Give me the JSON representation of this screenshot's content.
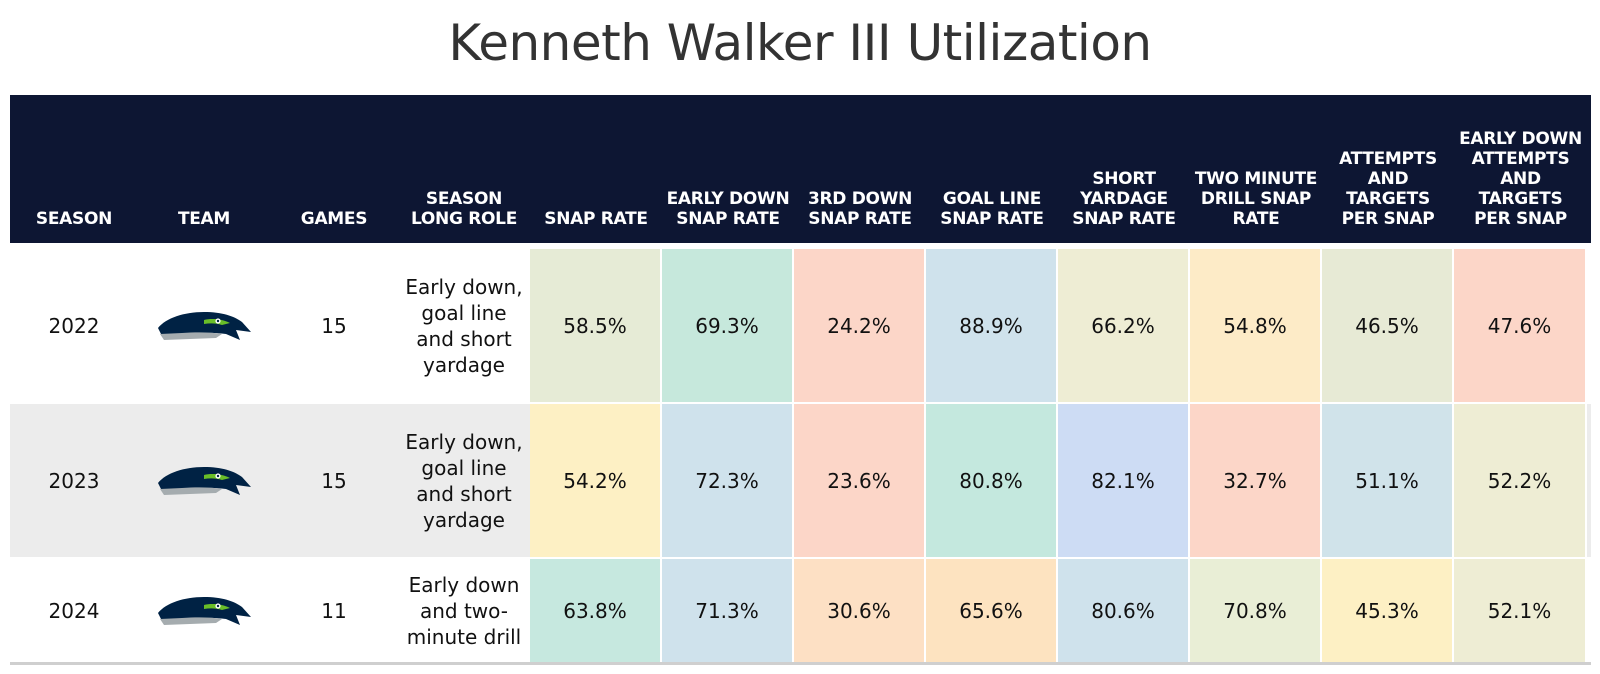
{
  "title": "Kenneth Walker III Utilization",
  "headers": [
    "SEASON",
    "TEAM",
    "GAMES",
    "SEASON LONG ROLE",
    "SNAP RATE",
    "EARLY DOWN SNAP RATE",
    "3RD DOWN SNAP RATE",
    "GOAL LINE SNAP RATE",
    "SHORT YARDAGE SNAP RATE",
    "TWO MINUTE DRILL SNAP RATE",
    "ATTEMPTS AND TARGETS PER SNAP",
    "EARLY DOWN ATTEMPTS AND TARGETS PER SNAP"
  ],
  "rows": [
    {
      "season": "2022",
      "team_logo": "seahawks-logo",
      "games": "15",
      "role": "Early down, goal line and short yardage",
      "metrics": [
        "58.5%",
        "69.3%",
        "24.2%",
        "88.9%",
        "66.2%",
        "54.8%",
        "46.5%",
        "47.6%"
      ],
      "colors": [
        "#e6ebd6",
        "#c6e8dc",
        "#fcd6c8",
        "#cfe2ec",
        "#eeedd4",
        "#fdebc7",
        "#e7ead5",
        "#fcd6c8"
      ]
    },
    {
      "season": "2023",
      "team_logo": "seahawks-logo",
      "games": "15",
      "role": "Early down, goal line and short yardage",
      "metrics": [
        "54.2%",
        "72.3%",
        "23.6%",
        "80.8%",
        "82.1%",
        "32.7%",
        "51.1%",
        "52.2%"
      ],
      "colors": [
        "#fdf0c4",
        "#cfe2ec",
        "#fcd6c8",
        "#c4e8de",
        "#cddcf4",
        "#fcd6c8",
        "#d0e3ea",
        "#eeedd4"
      ]
    },
    {
      "season": "2024",
      "team_logo": "seahawks-logo",
      "games": "11",
      "role": "Early down and two-minute drill",
      "metrics": [
        "63.8%",
        "71.3%",
        "30.6%",
        "65.6%",
        "80.6%",
        "70.8%",
        "45.3%",
        "52.1%"
      ],
      "colors": [
        "#c6e8df",
        "#cfe2ec",
        "#fde0c4",
        "#fde3c0",
        "#cfe2ec",
        "#e9eed6",
        "#fdf0c4",
        "#eeedd4"
      ]
    }
  ],
  "colors": {
    "header_bg": "#0d1633",
    "header_text": "#ffffff",
    "logo_navy": "#002244",
    "logo_green": "#69be28",
    "logo_gray": "#a5acaf"
  }
}
